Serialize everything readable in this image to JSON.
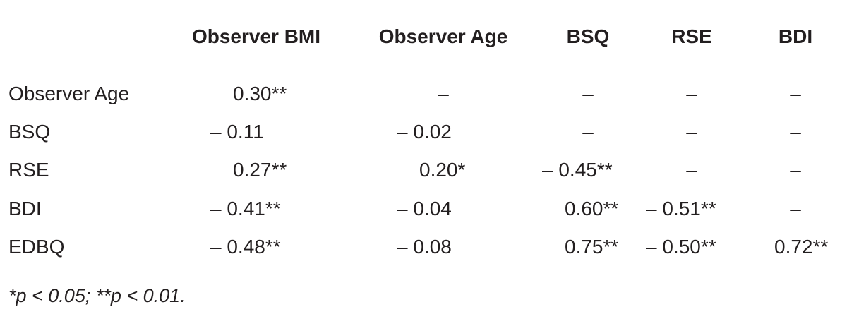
{
  "table": {
    "columns": [
      "Observer BMI",
      "Observer Age",
      "BSQ",
      "RSE",
      "BDI"
    ],
    "rows": [
      {
        "label": "Observer Age",
        "cells": [
          "0.30**",
          "–",
          "–",
          "–",
          "–"
        ]
      },
      {
        "label": "BSQ",
        "cells": [
          "– 0.11",
          "– 0.02",
          "–",
          "–",
          "–"
        ]
      },
      {
        "label": "RSE",
        "cells": [
          "0.27**",
          "0.20*",
          "– 0.45**",
          "–",
          "–"
        ]
      },
      {
        "label": "BDI",
        "cells": [
          "– 0.41**",
          "– 0.04",
          "0.60**",
          "– 0.51**",
          "–"
        ]
      },
      {
        "label": "EDBQ",
        "cells": [
          "– 0.48**",
          "– 0.08",
          "0.75**",
          "– 0.50**",
          "0.72**"
        ]
      }
    ],
    "footnote": "*p < 0.05; **p < 0.01."
  }
}
